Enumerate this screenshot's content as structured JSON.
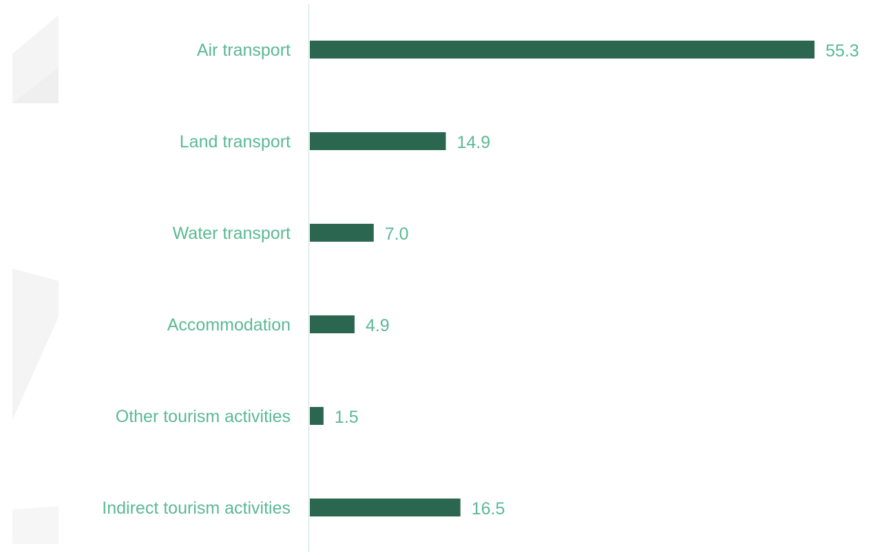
{
  "chart_data": {
    "type": "bar",
    "orientation": "horizontal",
    "categories": [
      "Air transport",
      "Land transport",
      "Water transport",
      "Accommodation",
      "Other tourism activities",
      "Indirect tourism activities"
    ],
    "values": [
      55.3,
      14.9,
      7.0,
      4.9,
      1.5,
      16.5
    ],
    "data_labels": [
      "55.3",
      "14.9",
      "7.0",
      "4.9",
      "1.5",
      "16.5"
    ],
    "xlim": [
      0,
      55.3
    ],
    "grid": false,
    "legend": "none",
    "colors": {
      "bar": "#2a6650",
      "label_text": "#5ab994",
      "axis_line": "#d7e9e2",
      "decor": "#f4f4f4"
    }
  }
}
